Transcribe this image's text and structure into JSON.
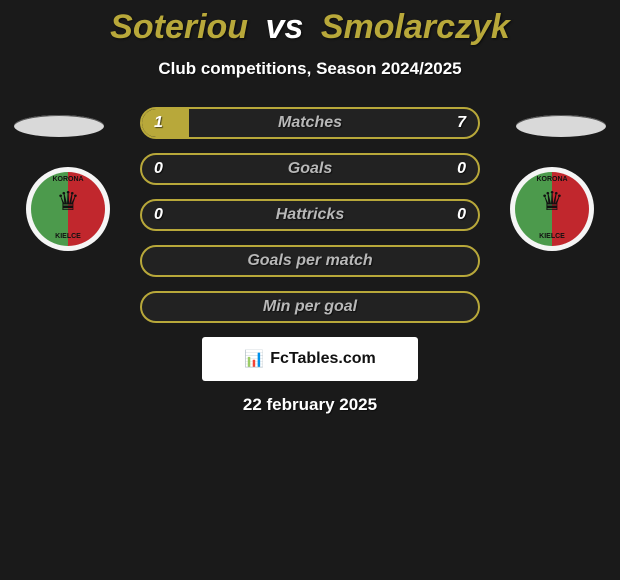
{
  "title": {
    "left_name": "Soteriou",
    "vs": "vs",
    "right_name": "Smolarczyk",
    "left_color": "#b8a83a",
    "vs_color": "#ffffff",
    "right_color": "#b8a83a",
    "fontsize": 34
  },
  "subtitle": "Club competitions, Season 2024/2025",
  "date": "22 february 2025",
  "background_color": "#1a1a1a",
  "ellipse_color": "#d9d9d9",
  "badge": {
    "bg": "#f5f5f5",
    "crest_left_half": "#4c9a4c",
    "crest_right_half": "#c1272d",
    "crest_top_text": "KORONA",
    "crest_bottom_text": "KIELCE",
    "crown_glyph": "♛",
    "crown_color": "#111111"
  },
  "bars": {
    "border_color": "#b8a83a",
    "bg_color": "#222222",
    "label_color": "#b8b8b8",
    "fill_color": "#b8a83a",
    "label_fontsize": 16,
    "items": [
      {
        "label": "Matches",
        "left": "1",
        "right": "7",
        "fill_pct": 14
      },
      {
        "label": "Goals",
        "left": "0",
        "right": "0",
        "fill_pct": 0
      },
      {
        "label": "Hattricks",
        "left": "0",
        "right": "0",
        "fill_pct": 0
      },
      {
        "label": "Goals per match",
        "left": "",
        "right": "",
        "fill_pct": 0
      },
      {
        "label": "Min per goal",
        "left": "",
        "right": "",
        "fill_pct": 0
      }
    ]
  },
  "brand": {
    "icon_glyph": "📊",
    "text": "FcTables.com",
    "plate_bg": "#ffffff",
    "text_color": "#111111"
  }
}
